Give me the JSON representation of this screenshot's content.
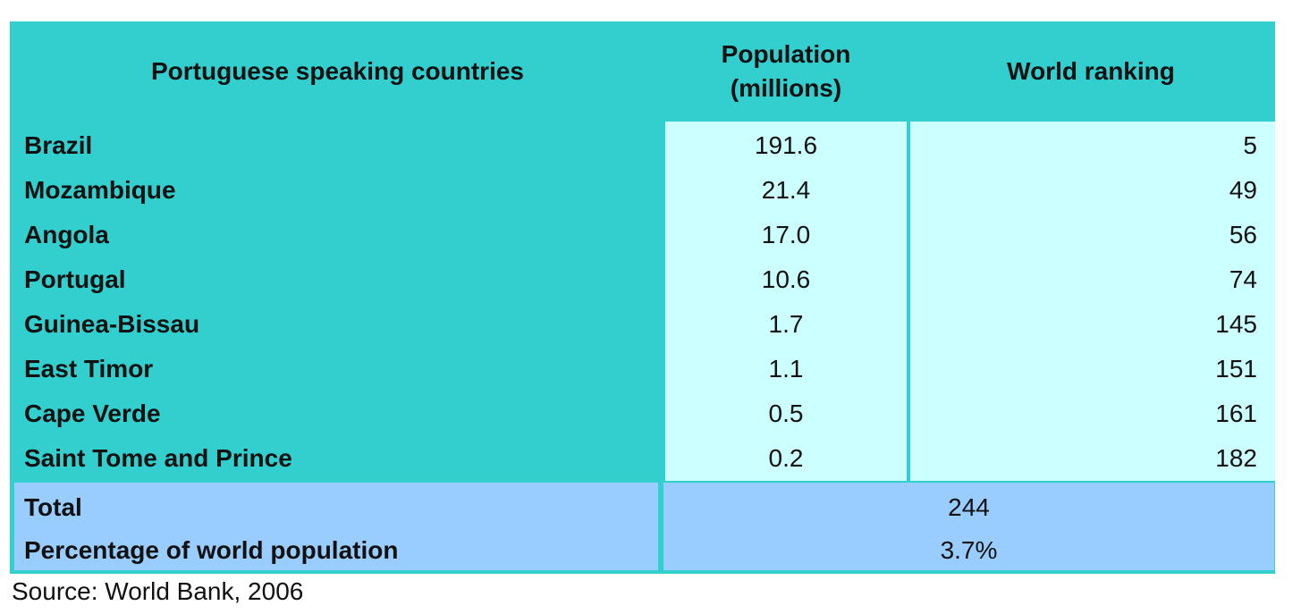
{
  "table": {
    "headers": {
      "country": "Portuguese speaking countries",
      "population_line1": "Population",
      "population_line2": "(millions)",
      "ranking": "World ranking"
    },
    "rows": [
      {
        "country": "Brazil",
        "population": "191.6",
        "ranking": "5"
      },
      {
        "country": "Mozambique",
        "population": "21.4",
        "ranking": "49"
      },
      {
        "country": "Angola",
        "population": "17.0",
        "ranking": "56"
      },
      {
        "country": "Portugal",
        "population": "10.6",
        "ranking": "74"
      },
      {
        "country": "Guinea-Bissau",
        "population": "1.7",
        "ranking": "145"
      },
      {
        "country": "East Timor",
        "population": "1.1",
        "ranking": "151"
      },
      {
        "country": "Cape Verde",
        "population": "0.5",
        "ranking": "161"
      },
      {
        "country": "Saint Tome and Prince",
        "population": "0.2",
        "ranking": "182"
      }
    ],
    "total_label": "Total",
    "total_value": "244",
    "percentage_label": "Percentage of world population",
    "percentage_value": "3.7%"
  },
  "source": "Source: World Bank, 2006",
  "colors": {
    "header_bg": "#33cfcf",
    "body_cells": "#ccffff",
    "footer_cells": "#99ccff"
  }
}
